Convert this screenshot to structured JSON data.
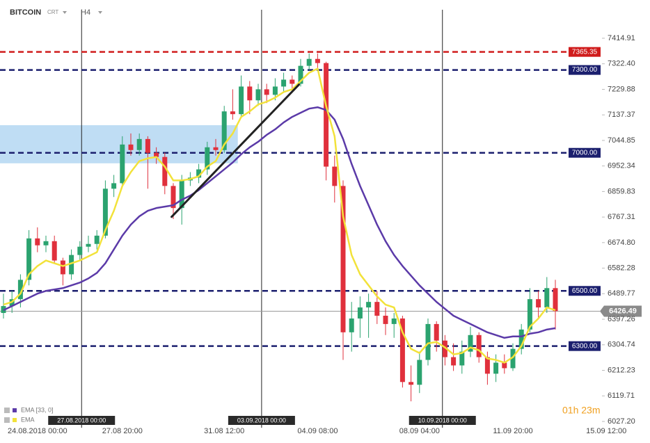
{
  "header": {
    "symbol": "BITCOIN",
    "type": "CRT",
    "interval": "H4"
  },
  "timer": "01h 23m",
  "chart_data": {
    "type": "candlestick",
    "categories": [
      null,
      null,
      null,
      null,
      "24.08.2018  00:00",
      null,
      null,
      null,
      null,
      null,
      null,
      null,
      null,
      null,
      "27.08  20:00",
      null,
      null,
      null,
      null,
      null,
      null,
      null,
      null,
      null,
      null,
      null,
      "31.08  12:00",
      null,
      null,
      null,
      null,
      null,
      null,
      null,
      null,
      null,
      null,
      "04.09  08:00",
      null,
      null,
      null,
      null,
      null,
      null,
      null,
      null,
      null,
      null,
      null,
      "08.09  04:00",
      null,
      null,
      null,
      null,
      null,
      null,
      null,
      null,
      null,
      null,
      "11.09  20:00",
      null,
      null,
      null,
      null,
      null,
      null,
      null,
      null,
      null,
      null,
      "15.09  12:00"
    ],
    "open": [
      6420,
      6445,
      6470,
      6540,
      6690,
      6665,
      6680,
      6610,
      6560,
      6630,
      6660,
      6670,
      6700,
      6870,
      6890,
      7030,
      7010,
      7050,
      7000,
      6985,
      6880,
      6800,
      6900,
      6910,
      6940,
      7020,
      7010,
      7150,
      7140,
      7240,
      7190,
      7230,
      7210,
      7240,
      7265,
      7250,
      7315,
      7340,
      7325,
      6950,
      6880,
      6350,
      6400,
      6440,
      6460,
      6410,
      6380,
      6400,
      6170,
      6160,
      6250,
      6380,
      6320,
      6260,
      6230,
      6280,
      6340,
      6260,
      6200,
      6240,
      6220,
      6290,
      6360,
      6470,
      6440,
      6510,
      null,
      null,
      null,
      null,
      null,
      null
    ],
    "high": [
      6490,
      6500,
      6560,
      6720,
      6730,
      6700,
      6700,
      6620,
      6650,
      6680,
      6700,
      6720,
      6900,
      6920,
      7060,
      7070,
      7070,
      7060,
      7020,
      7000,
      6890,
      6920,
      6930,
      6960,
      7040,
      7050,
      7170,
      7230,
      7280,
      7260,
      7250,
      7250,
      7270,
      7290,
      7280,
      7340,
      7360,
      7360,
      7330,
      6990,
      6900,
      6460,
      6480,
      6490,
      6500,
      6440,
      6420,
      6410,
      6230,
      6280,
      6400,
      6390,
      6340,
      6310,
      6320,
      6370,
      6350,
      6280,
      6270,
      6270,
      6310,
      6380,
      6510,
      6500,
      6550,
      6540,
      null,
      null,
      null,
      null,
      null,
      null
    ],
    "low": [
      6400,
      6420,
      6440,
      6520,
      6640,
      6640,
      6600,
      6520,
      6540,
      6610,
      6640,
      6650,
      6690,
      6840,
      6880,
      6990,
      6990,
      6870,
      6960,
      6850,
      6760,
      6740,
      6880,
      6890,
      6920,
      6990,
      7000,
      7120,
      7130,
      7140,
      7170,
      7180,
      7190,
      7220,
      7220,
      7240,
      7300,
      7300,
      6900,
      6820,
      6250,
      6280,
      6330,
      6330,
      6380,
      6340,
      6330,
      6150,
      6100,
      6130,
      6230,
      6280,
      6230,
      6210,
      6200,
      6260,
      6240,
      6160,
      6170,
      6200,
      6210,
      6270,
      6350,
      6400,
      6420,
      6360,
      null,
      null,
      null,
      null,
      null,
      null
    ],
    "close": [
      6445,
      6470,
      6540,
      6690,
      6665,
      6680,
      6610,
      6560,
      6630,
      6660,
      6670,
      6700,
      6870,
      6890,
      7030,
      7010,
      7050,
      7000,
      6985,
      6880,
      6800,
      6900,
      6910,
      6940,
      7020,
      7010,
      7150,
      7140,
      7240,
      7190,
      7230,
      7210,
      7240,
      7265,
      7250,
      7315,
      7340,
      7325,
      6950,
      6880,
      6350,
      6400,
      6440,
      6460,
      6410,
      6380,
      6400,
      6170,
      6160,
      6250,
      6380,
      6320,
      6260,
      6230,
      6280,
      6340,
      6260,
      6200,
      6240,
      6220,
      6290,
      6360,
      6470,
      6440,
      6510,
      6426.49,
      null,
      null,
      null,
      null,
      null,
      null
    ],
    "up_color": "#2ba36f",
    "down_color": "#e0303c",
    "series": [
      {
        "name": "EMA [33, 0]",
        "color": "#5b3aa8",
        "values": [
          6430,
          6445,
          6460,
          6475,
          6490,
          6500,
          6505,
          6510,
          6520,
          6530,
          6545,
          6565,
          6600,
          6650,
          6700,
          6740,
          6770,
          6790,
          6800,
          6805,
          6810,
          6830,
          6845,
          6865,
          6890,
          6915,
          6940,
          6965,
          6995,
          7020,
          7040,
          7065,
          7085,
          7110,
          7130,
          7145,
          7160,
          7165,
          7155,
          7120,
          7050,
          6960,
          6880,
          6810,
          6740,
          6680,
          6630,
          6590,
          6555,
          6520,
          6490,
          6460,
          6435,
          6410,
          6395,
          6380,
          6365,
          6350,
          6340,
          6330,
          6335,
          6335,
          6345,
          6350,
          6360,
          6365,
          null,
          null,
          null,
          null,
          null,
          null
        ]
      },
      {
        "name": "EMA",
        "color": "#f2e23a",
        "values": [
          6450,
          6460,
          6490,
          6560,
          6590,
          6610,
          6600,
          6590,
          6600,
          6610,
          6625,
          6640,
          6720,
          6790,
          6880,
          6930,
          6970,
          6980,
          6985,
          6950,
          6900,
          6900,
          6905,
          6915,
          6950,
          6970,
          7030,
          7070,
          7130,
          7150,
          7175,
          7185,
          7200,
          7220,
          7230,
          7260,
          7290,
          7305,
          7170,
          7060,
          6770,
          6630,
          6560,
          6520,
          6480,
          6450,
          6440,
          6350,
          6290,
          6275,
          6310,
          6315,
          6295,
          6270,
          6275,
          6295,
          6285,
          6255,
          6250,
          6240,
          6260,
          6300,
          6370,
          6400,
          6440,
          6430,
          null,
          null,
          null,
          null,
          null,
          null
        ]
      }
    ],
    "ylim": [
      6004.5,
      7528.2
    ],
    "yticks": [
      7414.91,
      {
        "value": 7322.4,
        "label": "7322.40"
      },
      7229.88,
      7137.37,
      7044.85,
      6952.34,
      6859.83,
      6767.31,
      {
        "value": 6674.8,
        "label": "6674.80"
      },
      6582.28,
      6489.77,
      6397.26,
      6304.74,
      6212.23,
      6119.71,
      {
        "value": 6027.2,
        "label": "6027.20"
      }
    ],
    "grid": false,
    "levels": [
      {
        "value": 7365.35,
        "color": "#d01c1c"
      },
      {
        "value": 7300,
        "label": "7300.00",
        "color": "#1b1f6e"
      },
      {
        "value": 7000,
        "label": "7000.00",
        "color": "#1b1f6e"
      },
      {
        "value": 6500,
        "label": "6500.00",
        "color": "#1b1f6e"
      },
      {
        "value": 6300,
        "label": "6300.00",
        "color": "#1b1f6e"
      }
    ],
    "last_price": 6426.49,
    "zone": {
      "ylim": [
        6962,
        7100
      ],
      "xlim": [
        -0.5,
        27.6
      ],
      "color": "#a9d2f0"
    },
    "trendline": {
      "x": [
        19.8,
        34.8
      ],
      "y": [
        6768,
        7247
      ],
      "color": "#222222"
    },
    "markers": [
      {
        "x": 9.2,
        "label": "27.08.2018 00:00"
      },
      {
        "x": 30.4,
        "label": "03.09.2018 00:00"
      },
      {
        "x": 51.7,
        "label": "10.09.2018 00:00"
      }
    ]
  }
}
